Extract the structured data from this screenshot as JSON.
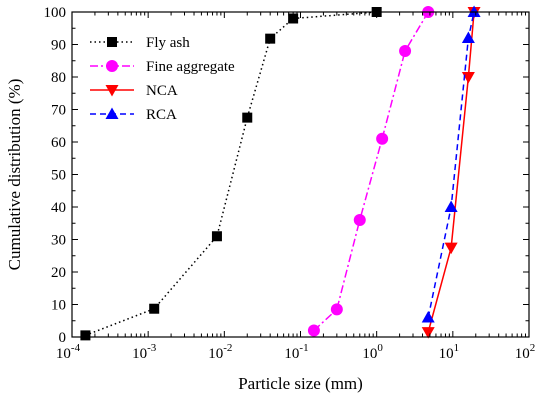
{
  "chart_data": {
    "type": "line",
    "xlabel": "Particle size (mm)",
    "ylabel": "Cumulative distribution (%)",
    "xscale": "log",
    "xlim": [
      0.0001,
      100
    ],
    "ylim": [
      0,
      100
    ],
    "x_ticks": [
      {
        "value": 0.0001,
        "base": "10",
        "exp": "-4"
      },
      {
        "value": 0.001,
        "base": "10",
        "exp": "-3"
      },
      {
        "value": 0.01,
        "base": "10",
        "exp": "-2"
      },
      {
        "value": 0.1,
        "base": "10",
        "exp": "-1"
      },
      {
        "value": 1,
        "base": "10",
        "exp": "0"
      },
      {
        "value": 10,
        "base": "10",
        "exp": "1"
      },
      {
        "value": 100,
        "base": "10",
        "exp": "2"
      }
    ],
    "y_ticks": [
      "0",
      "10",
      "20",
      "30",
      "40",
      "50",
      "60",
      "70",
      "80",
      "90",
      "100"
    ],
    "grid": false,
    "legend_position": "top-left",
    "series": [
      {
        "name": "Fly ash",
        "color": "#000000",
        "marker": "square",
        "line_style": "dotted",
        "points": [
          {
            "x": 0.00015,
            "y": 0.5
          },
          {
            "x": 0.0012,
            "y": 8.7
          },
          {
            "x": 0.008,
            "y": 31
          },
          {
            "x": 0.02,
            "y": 67.5
          },
          {
            "x": 0.04,
            "y": 91.8
          },
          {
            "x": 0.08,
            "y": 98
          },
          {
            "x": 1.0,
            "y": 100
          }
        ]
      },
      {
        "name": "Fine aggregate",
        "color": "#ff00ff",
        "marker": "circle",
        "line_style": "dash-dot",
        "points": [
          {
            "x": 0.15,
            "y": 2
          },
          {
            "x": 0.3,
            "y": 8.5
          },
          {
            "x": 0.6,
            "y": 36
          },
          {
            "x": 1.18,
            "y": 61
          },
          {
            "x": 2.36,
            "y": 88
          },
          {
            "x": 4.75,
            "y": 100
          }
        ]
      },
      {
        "name": "NCA",
        "color": "#ff0000",
        "marker": "triangle-down",
        "line_style": "solid",
        "points": [
          {
            "x": 4.75,
            "y": 1.5
          },
          {
            "x": 9.5,
            "y": 27.5
          },
          {
            "x": 16,
            "y": 80
          },
          {
            "x": 19,
            "y": 100
          }
        ]
      },
      {
        "name": "RCA",
        "color": "#0000ff",
        "marker": "triangle-up",
        "line_style": "dashed",
        "points": [
          {
            "x": 4.75,
            "y": 6
          },
          {
            "x": 9.5,
            "y": 40
          },
          {
            "x": 16,
            "y": 92
          },
          {
            "x": 19,
            "y": 100
          }
        ]
      }
    ]
  }
}
